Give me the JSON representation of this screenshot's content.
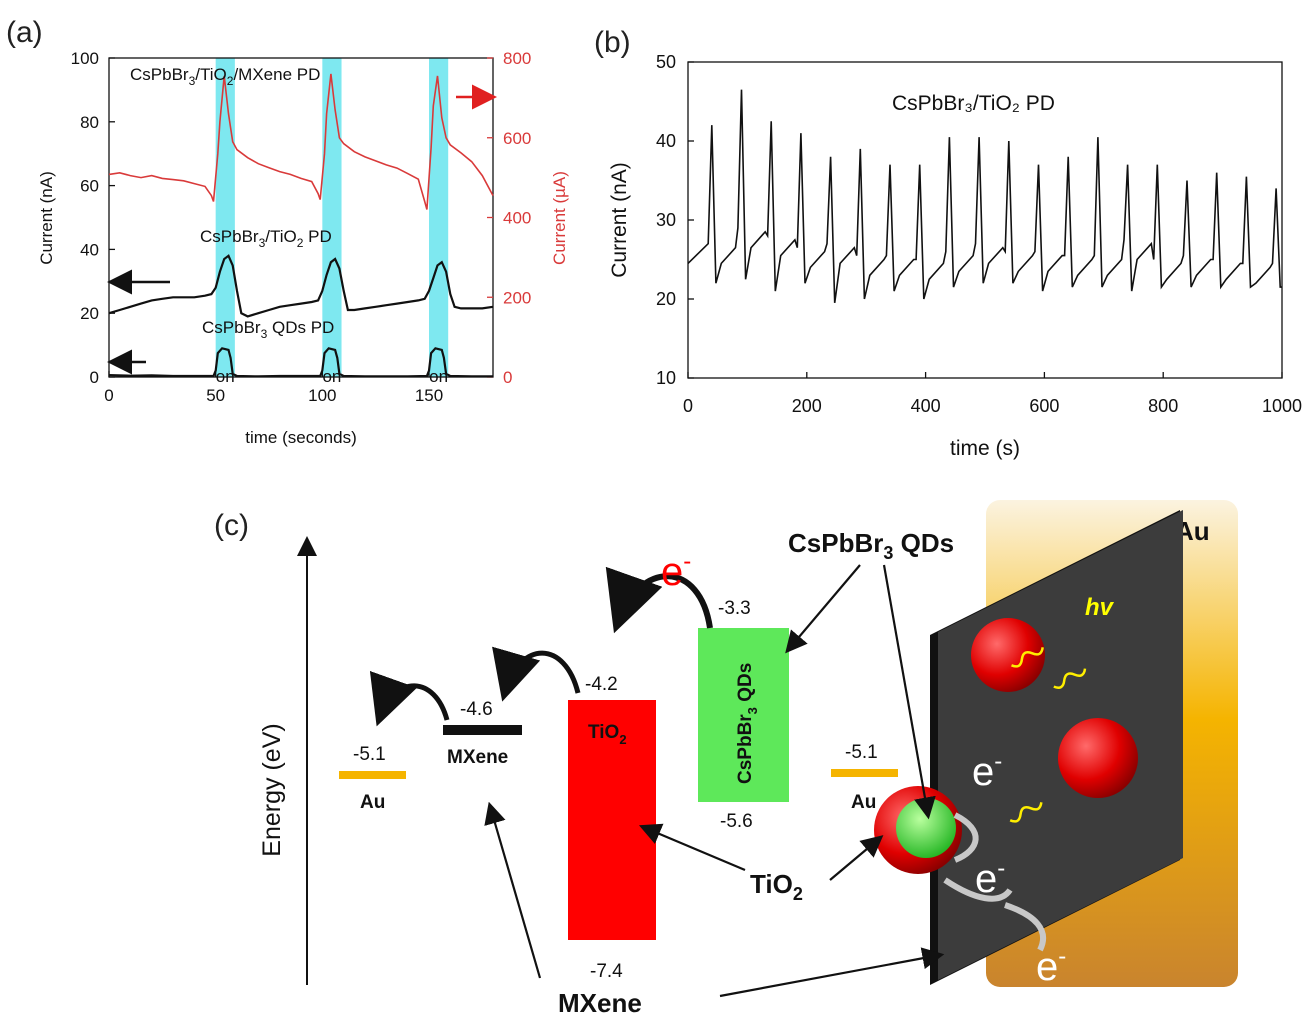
{
  "panels": {
    "a": "(a)",
    "b": "(b)",
    "c": "(c)"
  },
  "chart_data": [
    {
      "panel": "(a)",
      "type": "line",
      "xlabel": "time (seconds)",
      "ylabel": "Current (nA)",
      "ylabel_right": "Current (µA)",
      "xlim": [
        0,
        180
      ],
      "ylim": [
        0,
        100
      ],
      "ylim_right": [
        0,
        800
      ],
      "xticks": [
        0,
        50,
        100,
        150
      ],
      "yticks": [
        0,
        20,
        40,
        60,
        80,
        100
      ],
      "yticks_right": [
        0,
        200,
        400,
        600,
        800
      ],
      "on_windows": [
        [
          50,
          59
        ],
        [
          100,
          109
        ],
        [
          150,
          159
        ]
      ],
      "on_label": "on",
      "series": [
        {
          "name": "CsPbBr3/TiO2/MXene PD",
          "axis": "right",
          "color": "#d93a3a",
          "x": [
            0,
            5,
            10,
            15,
            20,
            25,
            30,
            35,
            40,
            45,
            48,
            49,
            51,
            52,
            54,
            56,
            58,
            60,
            65,
            70,
            75,
            80,
            85,
            90,
            95,
            98,
            99,
            101,
            102,
            104,
            106,
            108,
            110,
            115,
            120,
            125,
            130,
            135,
            140,
            145,
            148,
            149,
            151,
            152,
            154,
            156,
            158,
            160,
            165,
            170,
            175,
            180
          ],
          "values": [
            508,
            512,
            505,
            500,
            505,
            498,
            495,
            492,
            485,
            478,
            455,
            440,
            560,
            640,
            755,
            660,
            590,
            570,
            550,
            535,
            525,
            515,
            508,
            498,
            490,
            460,
            445,
            560,
            660,
            760,
            670,
            600,
            585,
            565,
            552,
            542,
            532,
            524,
            510,
            496,
            440,
            420,
            575,
            680,
            755,
            650,
            600,
            582,
            562,
            540,
            505,
            455
          ]
        },
        {
          "name": "CsPbBr3/TiO2 PD",
          "axis": "left",
          "color": "#111111",
          "x": [
            0,
            5,
            10,
            15,
            20,
            25,
            30,
            35,
            40,
            45,
            48,
            50,
            52,
            54,
            56,
            58,
            60,
            62,
            65,
            70,
            75,
            80,
            85,
            90,
            95,
            98,
            100,
            102,
            104,
            106,
            108,
            110,
            112,
            115,
            120,
            125,
            130,
            135,
            140,
            145,
            148,
            150,
            152,
            154,
            156,
            158,
            160,
            162,
            165,
            170,
            175,
            180
          ],
          "values": [
            20,
            21,
            22,
            23,
            24,
            24.5,
            25,
            25,
            25,
            25.5,
            26,
            28,
            33,
            37,
            38,
            35,
            27,
            20,
            19,
            20,
            21,
            22,
            22.5,
            23,
            23.5,
            24,
            27,
            32,
            36,
            37,
            34,
            27,
            21,
            21,
            21.5,
            22,
            22.5,
            23,
            23.5,
            24,
            24.5,
            27,
            31,
            35,
            36,
            33,
            26,
            22,
            21.5,
            21.5,
            21.5,
            22
          ]
        },
        {
          "name": "CsPbBr3 QDs PD",
          "axis": "left",
          "color": "#111111",
          "x": [
            0,
            10,
            20,
            30,
            40,
            49,
            50,
            51,
            53,
            56,
            57,
            58,
            60,
            70,
            80,
            90,
            99,
            100,
            101,
            103,
            106,
            107,
            108,
            110,
            120,
            130,
            140,
            149,
            150,
            151,
            153,
            156,
            157,
            158,
            160,
            170,
            180
          ],
          "values": [
            0.6,
            0.4,
            0.5,
            0.3,
            0.3,
            0.3,
            2,
            7.5,
            9,
            8.5,
            6,
            1,
            0.3,
            0.2,
            0.3,
            0.3,
            0.3,
            2,
            7.5,
            9,
            8.5,
            6,
            1,
            0.3,
            0.2,
            0.2,
            0.2,
            0.3,
            2,
            7.5,
            9,
            8.5,
            6,
            1,
            0.3,
            0.2,
            0.2
          ]
        }
      ],
      "labels": {
        "mxene_pd": [
          "CsPbBr",
          "3",
          "/TiO",
          "2",
          "/MXene PD"
        ],
        "tio2_pd": [
          "CsPbBr",
          "3",
          "/TiO",
          "2",
          " PD"
        ],
        "qd_pd": [
          "CsPbBr",
          "3",
          " QDs PD"
        ]
      },
      "colors": {
        "highlight": "#7ee8f0",
        "right_axis": "#d93a3a"
      }
    },
    {
      "panel": "(b)",
      "type": "line",
      "title": "CsPbBr₃/TiO₂ PD",
      "xlabel": "time (s)",
      "ylabel": "Current (nA)",
      "xlim": [
        0,
        1000
      ],
      "ylim": [
        10,
        50
      ],
      "xticks": [
        0,
        200,
        400,
        600,
        800,
        1000
      ],
      "yticks": [
        10,
        20,
        30,
        40,
        50
      ],
      "pulse_times": [
        40,
        90,
        140,
        190,
        240,
        290,
        340,
        390,
        440,
        490,
        540,
        590,
        640,
        690,
        740,
        790,
        840,
        890,
        940,
        990
      ],
      "pulse_peaks": [
        42,
        46.5,
        42.5,
        41,
        38,
        39,
        37,
        37,
        40.5,
        40.5,
        40,
        37,
        38,
        40.5,
        37,
        37,
        35,
        36,
        35.5,
        34
      ],
      "pulse_troughs": [
        22,
        22.5,
        21,
        22,
        19.5,
        20,
        21,
        20,
        21.5,
        22,
        22,
        21,
        21.5,
        21.5,
        21,
        21.5,
        21.5,
        21.5,
        21.5,
        21.5
      ],
      "pulse_preceding": [
        27,
        29,
        28,
        26.5,
        27,
        25.5,
        25.5,
        25,
        26,
        27,
        26,
        26,
        25.5,
        25.5,
        27.5,
        25,
        25.5,
        25,
        24.5,
        24.5
      ],
      "start_value": 24.5,
      "color": "#111111"
    }
  ],
  "diagram": {
    "energy_axis": "Energy (eV)",
    "levels": [
      {
        "material": "Au",
        "value": "-5.1",
        "color": "#f5b400"
      },
      {
        "material": "MXene",
        "value": "-4.6",
        "color": "#111111"
      },
      {
        "material": "TiO",
        "sub": "2",
        "top": "-4.2",
        "bottom": "-7.4",
        "color": "#ff0000"
      },
      {
        "material": "CsPbBr",
        "sub": "3",
        "suffix": " QDs",
        "top": "-3.3",
        "bottom": "-5.6",
        "color": "#5ee85a"
      },
      {
        "material": "Au",
        "value": "-5.1",
        "color": "#f5b400"
      }
    ],
    "electron": "e",
    "electron_sup": "-",
    "callouts": {
      "qds": [
        "CsPbBr",
        "3",
        " QDs"
      ],
      "tio2": [
        "TiO",
        "2"
      ],
      "mxene": "MXene",
      "au": "Au",
      "hv": "hv"
    }
  }
}
